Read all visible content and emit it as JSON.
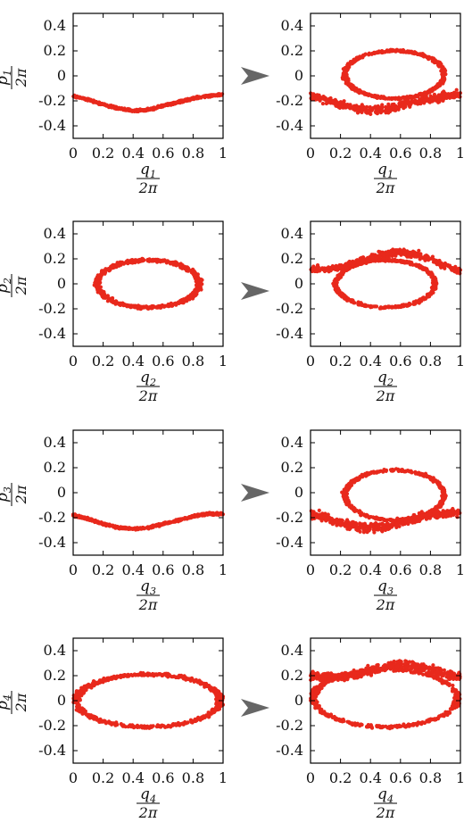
{
  "figure": {
    "point_color": "#e8291c",
    "arrow_color": "#666666",
    "arrow_icon": "right-arrowhead-icon"
  },
  "chart_data": [
    {
      "type": "scatter",
      "panel": "row1-left",
      "ylabel": "p1/2π",
      "xlabel": "q1/2π",
      "label_index": "1",
      "xlim": [
        0,
        1
      ],
      "ylim": [
        -0.5,
        0.5
      ],
      "xticks": [
        "0",
        "0.2",
        "0.4",
        "0.6",
        "0.8",
        "1"
      ],
      "yticks": [
        "0.4",
        "0.2",
        "0",
        "-0.2",
        "-0.4"
      ],
      "shape": "band",
      "x": [
        0,
        0.1,
        0.2,
        0.3,
        0.4,
        0.5,
        0.6,
        0.7,
        0.8,
        0.9,
        1.0
      ],
      "y": [
        -0.16,
        -0.19,
        -0.23,
        -0.26,
        -0.28,
        -0.27,
        -0.24,
        -0.21,
        -0.18,
        -0.16,
        -0.15
      ],
      "spread": 0.012
    },
    {
      "type": "scatter",
      "panel": "row1-right",
      "ylabel": "",
      "xlabel": "q1/2π",
      "label_index": "1",
      "xlim": [
        0,
        1
      ],
      "ylim": [
        -0.5,
        0.5
      ],
      "xticks": [
        "0",
        "0.2",
        "0.4",
        "0.6",
        "0.8",
        "1"
      ],
      "yticks": [
        "0.4",
        "0.2",
        "0",
        "-0.2",
        "-0.4"
      ],
      "shape": "loop_with_band",
      "loop": {
        "cx": 0.56,
        "cy": 0.01,
        "rx": 0.33,
        "ry": 0.19
      },
      "band": {
        "x": [
          0,
          0.1,
          0.2,
          0.3,
          0.4,
          0.5,
          0.6,
          0.7,
          0.8,
          0.9,
          1.0
        ],
        "y": [
          -0.16,
          -0.19,
          -0.23,
          -0.26,
          -0.28,
          -0.27,
          -0.24,
          -0.21,
          -0.18,
          -0.16,
          -0.15
        ],
        "spread": 0.05
      }
    },
    {
      "type": "scatter",
      "panel": "row2-left",
      "ylabel": "p2/2π",
      "xlabel": "q2/2π",
      "label_index": "2",
      "xlim": [
        0,
        1
      ],
      "ylim": [
        -0.5,
        0.5
      ],
      "xticks": [
        "0",
        "0.2",
        "0.4",
        "0.6",
        "0.8",
        "1"
      ],
      "yticks": [
        "0.4",
        "0.2",
        "0",
        "-0.2",
        "-0.4"
      ],
      "shape": "loop",
      "loop": {
        "cx": 0.5,
        "cy": 0.0,
        "rx": 0.34,
        "ry": 0.19
      }
    },
    {
      "type": "scatter",
      "panel": "row2-right",
      "ylabel": "",
      "xlabel": "q2/2π",
      "label_index": "2",
      "xlim": [
        0,
        1
      ],
      "ylim": [
        -0.5,
        0.5
      ],
      "xticks": [
        "0",
        "0.2",
        "0.4",
        "0.6",
        "0.8",
        "1"
      ],
      "yticks": [
        "0.4",
        "0.2",
        "0",
        "-0.2",
        "-0.4"
      ],
      "shape": "loop_with_band",
      "loop": {
        "cx": 0.5,
        "cy": 0.0,
        "rx": 0.33,
        "ry": 0.19
      },
      "band": {
        "x": [
          0,
          0.1,
          0.2,
          0.3,
          0.4,
          0.5,
          0.6,
          0.7,
          0.8,
          0.9,
          1.0
        ],
        "y": [
          0.12,
          0.11,
          0.13,
          0.17,
          0.21,
          0.24,
          0.25,
          0.24,
          0.2,
          0.14,
          0.1
        ],
        "spread": 0.04
      }
    },
    {
      "type": "scatter",
      "panel": "row3-left",
      "ylabel": "p3/2π",
      "xlabel": "q3/2π",
      "label_index": "3",
      "xlim": [
        0,
        1
      ],
      "ylim": [
        -0.5,
        0.5
      ],
      "xticks": [
        "0",
        "0.2",
        "0.4",
        "0.6",
        "0.8",
        "1"
      ],
      "yticks": [
        "0.4",
        "0.2",
        "0",
        "-0.2",
        "-0.4"
      ],
      "shape": "band",
      "x": [
        0,
        0.1,
        0.2,
        0.3,
        0.4,
        0.5,
        0.6,
        0.7,
        0.8,
        0.9,
        1.0
      ],
      "y": [
        -0.18,
        -0.21,
        -0.25,
        -0.28,
        -0.29,
        -0.28,
        -0.25,
        -0.22,
        -0.19,
        -0.17,
        -0.17
      ],
      "spread": 0.012
    },
    {
      "type": "scatter",
      "panel": "row3-right",
      "ylabel": "",
      "xlabel": "q3/2π",
      "label_index": "3",
      "xlim": [
        0,
        1
      ],
      "ylim": [
        -0.5,
        0.5
      ],
      "xticks": [
        "0",
        "0.2",
        "0.4",
        "0.6",
        "0.8",
        "1"
      ],
      "yticks": [
        "0.4",
        "0.2",
        "0",
        "-0.2",
        "-0.4"
      ],
      "shape": "loop_with_band",
      "loop": {
        "cx": 0.56,
        "cy": -0.02,
        "rx": 0.33,
        "ry": 0.2
      },
      "band": {
        "x": [
          0,
          0.1,
          0.2,
          0.3,
          0.4,
          0.5,
          0.6,
          0.7,
          0.8,
          0.9,
          1.0
        ],
        "y": [
          -0.17,
          -0.2,
          -0.24,
          -0.27,
          -0.28,
          -0.27,
          -0.24,
          -0.21,
          -0.18,
          -0.16,
          -0.16
        ],
        "spread": 0.05
      }
    },
    {
      "type": "scatter",
      "panel": "row4-left",
      "ylabel": "p4/2π",
      "xlabel": "q4/2π",
      "label_index": "4",
      "xlim": [
        0,
        1
      ],
      "ylim": [
        -0.5,
        0.5
      ],
      "xticks": [
        "0",
        "0.2",
        "0.4",
        "0.6",
        "0.8",
        "1"
      ],
      "yticks": [
        "0.4",
        "0.2",
        "0",
        "-0.2",
        "-0.4"
      ],
      "shape": "wide_loop",
      "loop": {
        "cx": 0.5,
        "cy": 0.0,
        "rx": 0.48,
        "ry": 0.21
      }
    },
    {
      "type": "scatter",
      "panel": "row4-right",
      "ylabel": "",
      "xlabel": "q4/2π",
      "label_index": "4",
      "xlim": [
        0,
        1
      ],
      "ylim": [
        -0.5,
        0.5
      ],
      "xticks": [
        "0",
        "0.2",
        "0.4",
        "0.6",
        "0.8",
        "1"
      ],
      "yticks": [
        "0.4",
        "0.2",
        "0",
        "-0.2",
        "-0.4"
      ],
      "shape": "wide_loop_with_band",
      "loop": {
        "cx": 0.5,
        "cy": 0.02,
        "rx": 0.48,
        "ry": 0.23
      },
      "band": {
        "x": [
          0,
          0.1,
          0.2,
          0.3,
          0.4,
          0.5,
          0.6,
          0.7,
          0.8,
          0.9,
          1.0
        ],
        "y": [
          0.2,
          0.19,
          0.19,
          0.21,
          0.24,
          0.27,
          0.29,
          0.28,
          0.25,
          0.21,
          0.19
        ],
        "spread": 0.05
      }
    }
  ]
}
